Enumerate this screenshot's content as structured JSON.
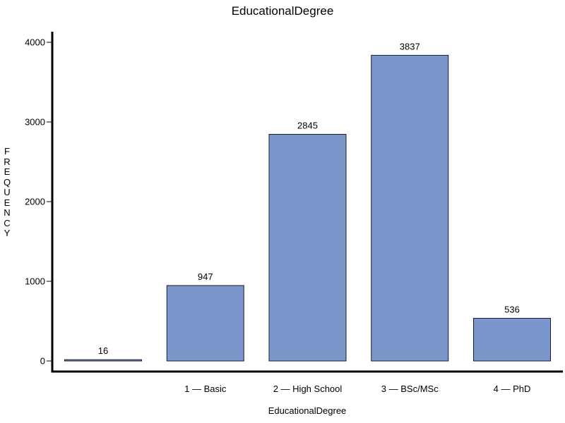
{
  "chart_data": {
    "type": "bar",
    "title": "EducationalDegree",
    "xlabel": "EducationalDegree",
    "ylabel": "FREQUENCY",
    "categories": [
      "",
      "1 — Basic",
      "2 — High School",
      "3 — BSc/MSc",
      "4 — PhD"
    ],
    "values": [
      16,
      947,
      2845,
      3837,
      536
    ],
    "yticks": [
      0,
      1000,
      2000,
      3000,
      4000
    ],
    "ylim": [
      0,
      4100
    ],
    "grid": false,
    "colors": {
      "bar_fill": "#7b96cb",
      "bar_stroke": "#1a1a2e",
      "axis": "#000000"
    }
  }
}
